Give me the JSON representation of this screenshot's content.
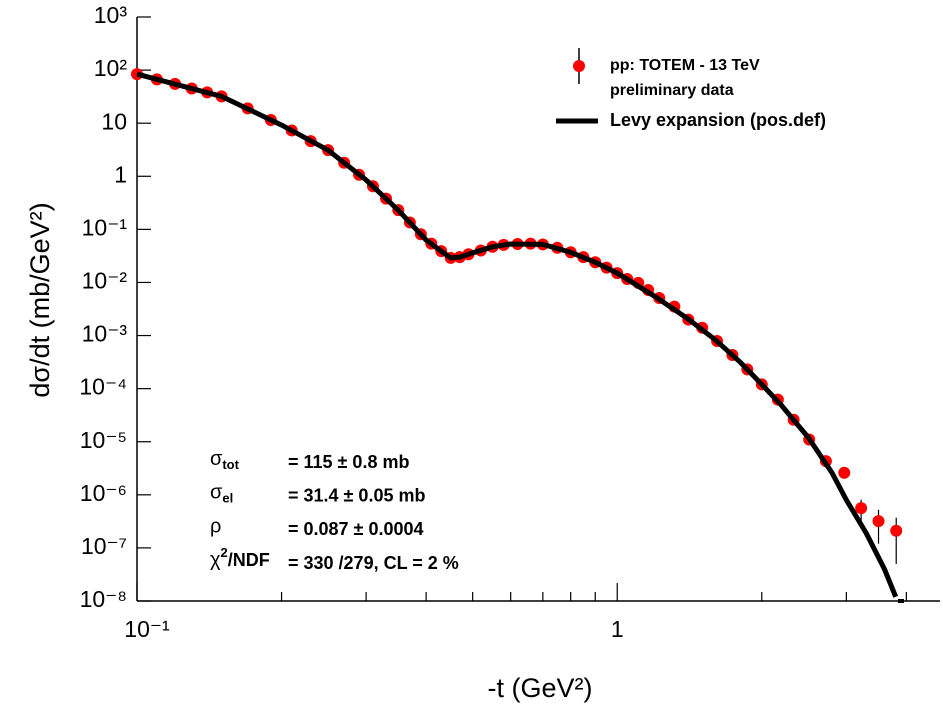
{
  "chart_data": {
    "type": "scatter",
    "xlabel": "-t (GeV²)",
    "ylabel": "dσ/dt (mb/GeV²)",
    "xscale": "log",
    "yscale": "log",
    "xlim": [
      0.1,
      4.7
    ],
    "ylim": [
      1e-08,
      1000
    ],
    "xticks": [
      {
        "value": 0.1,
        "label": "10⁻¹"
      },
      1
    ],
    "xminorticks": [
      0.2,
      0.3,
      0.4,
      0.5,
      0.6,
      0.7,
      0.8,
      0.9,
      2,
      3,
      4
    ],
    "yticks": [
      {
        "value": 1000,
        "label": "10³"
      },
      {
        "value": 100,
        "label": "10²"
      },
      10,
      1,
      {
        "value": 0.1,
        "label": "10⁻¹"
      },
      {
        "value": 0.01,
        "label": "10⁻²"
      },
      {
        "value": 0.001,
        "label": "10⁻³"
      },
      {
        "value": 0.0001,
        "label": "10⁻⁴"
      },
      {
        "value": 1e-05,
        "label": "10⁻⁵"
      },
      {
        "value": 1e-06,
        "label": "10⁻⁶"
      },
      {
        "value": 1e-07,
        "label": "10⁻⁷"
      },
      {
        "value": 1e-08,
        "label": "10⁻⁸"
      }
    ],
    "legend": "top-right",
    "series": [
      {
        "name": [
          "pp: TOTEM - 13 TeV",
          "preliminary data"
        ],
        "kind": "points",
        "color": "#ff0000",
        "x": [
          0.1,
          0.11,
          0.12,
          0.13,
          0.14,
          0.15,
          0.17,
          0.19,
          0.21,
          0.23,
          0.25,
          0.27,
          0.29,
          0.31,
          0.33,
          0.35,
          0.37,
          0.39,
          0.41,
          0.43,
          0.45,
          0.47,
          0.49,
          0.52,
          0.55,
          0.58,
          0.62,
          0.66,
          0.7,
          0.75,
          0.8,
          0.85,
          0.9,
          0.95,
          1.0,
          1.049,
          1.106,
          1.16,
          1.223,
          1.315,
          1.406,
          1.503,
          1.614,
          1.737,
          1.866,
          2.0,
          2.16,
          2.33,
          2.51,
          2.72,
          2.97,
          3.22,
          3.5,
          3.81
        ],
        "values": [
          84,
          67,
          55,
          45,
          38,
          32,
          19,
          11.5,
          7.3,
          4.6,
          3.1,
          1.8,
          1.07,
          0.65,
          0.38,
          0.23,
          0.135,
          0.081,
          0.054,
          0.039,
          0.029,
          0.03,
          0.034,
          0.04,
          0.047,
          0.051,
          0.053,
          0.054,
          0.052,
          0.045,
          0.037,
          0.03,
          0.024,
          0.019,
          0.015,
          0.0116,
          0.0098,
          0.0072,
          0.0051,
          0.0035,
          0.002,
          0.0014,
          0.00079,
          0.00043,
          0.00023,
          0.00012,
          6.2e-05,
          2.6e-05,
          1.1e-05,
          4.3e-06,
          2.6e-06,
          5.6e-07,
          3.2e-07,
          2.1e-07
        ],
        "errors": [
          null,
          null,
          null,
          null,
          null,
          null,
          null,
          null,
          null,
          null,
          null,
          null,
          null,
          null,
          null,
          null,
          null,
          null,
          null,
          null,
          null,
          null,
          null,
          null,
          null,
          null,
          null,
          null,
          null,
          null,
          null,
          null,
          null,
          null,
          null,
          null,
          null,
          null,
          null,
          null,
          null,
          null,
          null,
          null,
          null,
          null,
          null,
          null,
          null,
          null,
          null,
          2.5e-07,
          2e-07,
          1.6e-07
        ]
      },
      {
        "name": [
          "Levy expansion (pos.def)"
        ],
        "kind": "line",
        "color": "#000000",
        "x": [
          0.1,
          0.15,
          0.2,
          0.25,
          0.3,
          0.35,
          0.4,
          0.43,
          0.45,
          0.47,
          0.5,
          0.55,
          0.6,
          0.7,
          0.8,
          0.9,
          1.0,
          1.2,
          1.4,
          1.6,
          1.8,
          2.0,
          2.2,
          2.5,
          2.8,
          3.0,
          3.3,
          3.6,
          3.8
        ],
        "values": [
          84,
          32,
          9.2,
          3.1,
          0.85,
          0.23,
          0.063,
          0.039,
          0.029,
          0.03,
          0.036,
          0.047,
          0.053,
          0.052,
          0.037,
          0.024,
          0.015,
          0.0054,
          0.0021,
          0.00083,
          0.00032,
          0.00012,
          4.8e-05,
          1.2e-05,
          2.6e-06,
          8e-07,
          1.9e-07,
          4e-08,
          1.2e-08
        ]
      }
    ],
    "annotations": [
      {
        "symbol": "σ",
        "sub": "tot",
        "text": "= 115 ± 0.8 mb"
      },
      {
        "symbol": "σ",
        "sub": "el",
        "text": "= 31.4 ± 0.05 mb"
      },
      {
        "symbol": "ρ",
        "text": "= 0.087 ± 0.0004"
      },
      {
        "symbol": "χ",
        "sup": "2",
        "rest": "/NDF",
        "text": "= 330 /279,  CL = 2 %"
      }
    ]
  }
}
